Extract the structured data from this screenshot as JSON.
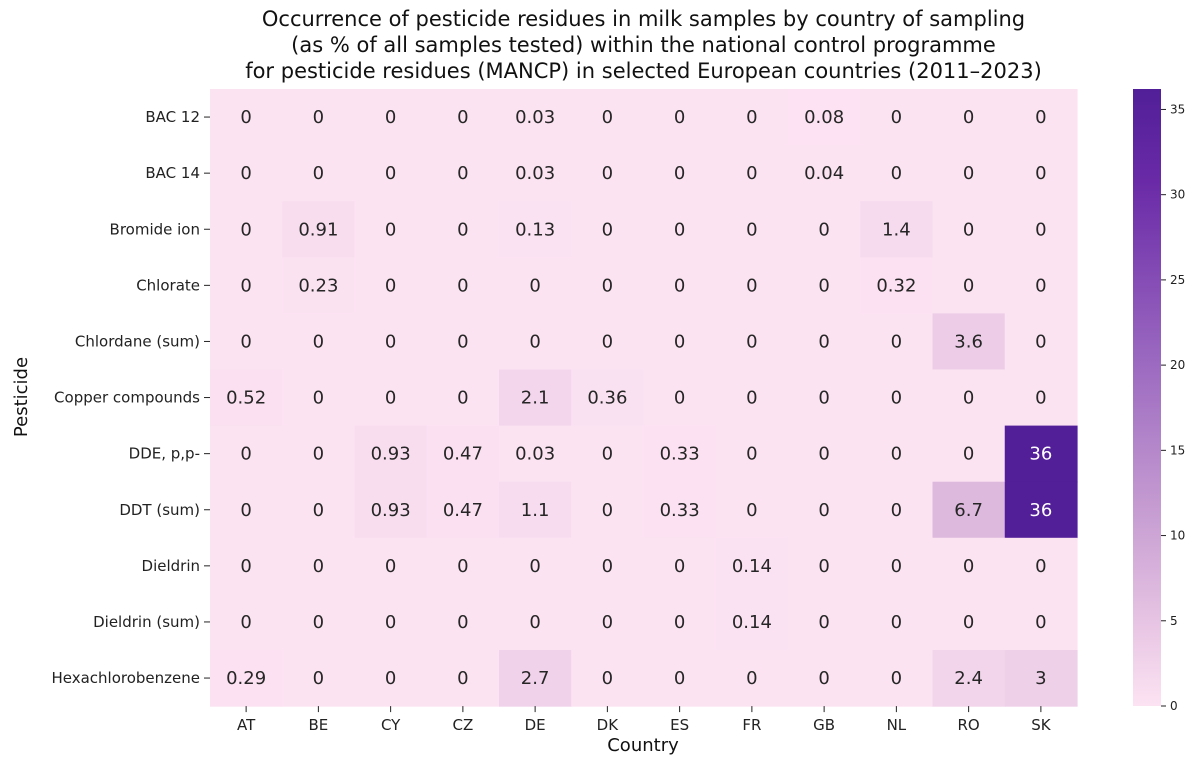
{
  "chart_data": {
    "type": "heatmap",
    "title_lines": [
      "Occurrence of pesticide residues in milk samples by country of sampling",
      "(as % of all samples tested) within the national control programme",
      "for pesticide residues (MANCP) in selected European countries (2011–2023)"
    ],
    "xlabel": "Country",
    "ylabel": "Pesticide",
    "x_categories": [
      "AT",
      "BE",
      "CY",
      "CZ",
      "DE",
      "DK",
      "ES",
      "FR",
      "GB",
      "NL",
      "RO",
      "SK"
    ],
    "y_categories": [
      "BAC 12",
      "BAC 14",
      "Bromide ion",
      "Chlorate",
      "Chlordane (sum)",
      "Copper compounds",
      "DDE, p,p-",
      "DDT (sum)",
      "Dieldrin",
      "Dieldrin (sum)",
      "Hexachlorobenzene"
    ],
    "values": [
      [
        0,
        0,
        0,
        0,
        0.03,
        0,
        0,
        0,
        0.08,
        0,
        0,
        0
      ],
      [
        0,
        0,
        0,
        0,
        0.03,
        0,
        0,
        0,
        0.04,
        0,
        0,
        0
      ],
      [
        0,
        0.91,
        0,
        0,
        0.13,
        0,
        0,
        0,
        0,
        1.4,
        0,
        0
      ],
      [
        0,
        0.23,
        0,
        0,
        0,
        0,
        0,
        0,
        0,
        0.32,
        0,
        0
      ],
      [
        0,
        0,
        0,
        0,
        0,
        0,
        0,
        0,
        0,
        0,
        3.6,
        0
      ],
      [
        0.52,
        0,
        0,
        0,
        2.1,
        0.36,
        0,
        0,
        0,
        0,
        0,
        0
      ],
      [
        0,
        0,
        0.93,
        0.47,
        0.03,
        0,
        0.33,
        0,
        0,
        0,
        0,
        36
      ],
      [
        0,
        0,
        0.93,
        0.47,
        1.1,
        0,
        0.33,
        0,
        0,
        0,
        6.7,
        36
      ],
      [
        0,
        0,
        0,
        0,
        0,
        0,
        0,
        0.14,
        0,
        0,
        0,
        0
      ],
      [
        0,
        0,
        0,
        0,
        0,
        0,
        0,
        0.14,
        0,
        0,
        0,
        0
      ],
      [
        0.29,
        0,
        0,
        0,
        2.7,
        0,
        0,
        0,
        0,
        0,
        2.4,
        3
      ]
    ],
    "cell_labels": [
      [
        "0",
        "0",
        "0",
        "0",
        "0.03",
        "0",
        "0",
        "0",
        "0.08",
        "0",
        "0",
        "0"
      ],
      [
        "0",
        "0",
        "0",
        "0",
        "0.03",
        "0",
        "0",
        "0",
        "0.04",
        "0",
        "0",
        "0"
      ],
      [
        "0",
        "0.91",
        "0",
        "0",
        "0.13",
        "0",
        "0",
        "0",
        "0",
        "1.4",
        "0",
        "0"
      ],
      [
        "0",
        "0.23",
        "0",
        "0",
        "0",
        "0",
        "0",
        "0",
        "0",
        "0.32",
        "0",
        "0"
      ],
      [
        "0",
        "0",
        "0",
        "0",
        "0",
        "0",
        "0",
        "0",
        "0",
        "0",
        "3.6",
        "0"
      ],
      [
        "0.52",
        "0",
        "0",
        "0",
        "2.1",
        "0.36",
        "0",
        "0",
        "0",
        "0",
        "0",
        "0"
      ],
      [
        "0",
        "0",
        "0.93",
        "0.47",
        "0.03",
        "0",
        "0.33",
        "0",
        "0",
        "0",
        "0",
        "36"
      ],
      [
        "0",
        "0",
        "0.93",
        "0.47",
        "1.1",
        "0",
        "0.33",
        "0",
        "0",
        "0",
        "6.7",
        "36"
      ],
      [
        "0",
        "0",
        "0",
        "0",
        "0",
        "0",
        "0",
        "0.14",
        "0",
        "0",
        "0",
        "0"
      ],
      [
        "0",
        "0",
        "0",
        "0",
        "0",
        "0",
        "0",
        "0.14",
        "0",
        "0",
        "0",
        "0"
      ],
      [
        "0.29",
        "0",
        "0",
        "0",
        "2.7",
        "0",
        "0",
        "0",
        "0",
        "0",
        "2.4",
        "3"
      ]
    ],
    "colorbar": {
      "range": [
        0,
        36.2
      ],
      "ticks": [
        0,
        5,
        10,
        15,
        20,
        25,
        30,
        35
      ],
      "colormap": [
        "#fce3f2",
        "#e6c3e3",
        "#c9a0d3",
        "#9460bd",
        "#6a2aa7",
        "#511f98"
      ]
    },
    "grid": false,
    "legend": "colorbar-right"
  }
}
